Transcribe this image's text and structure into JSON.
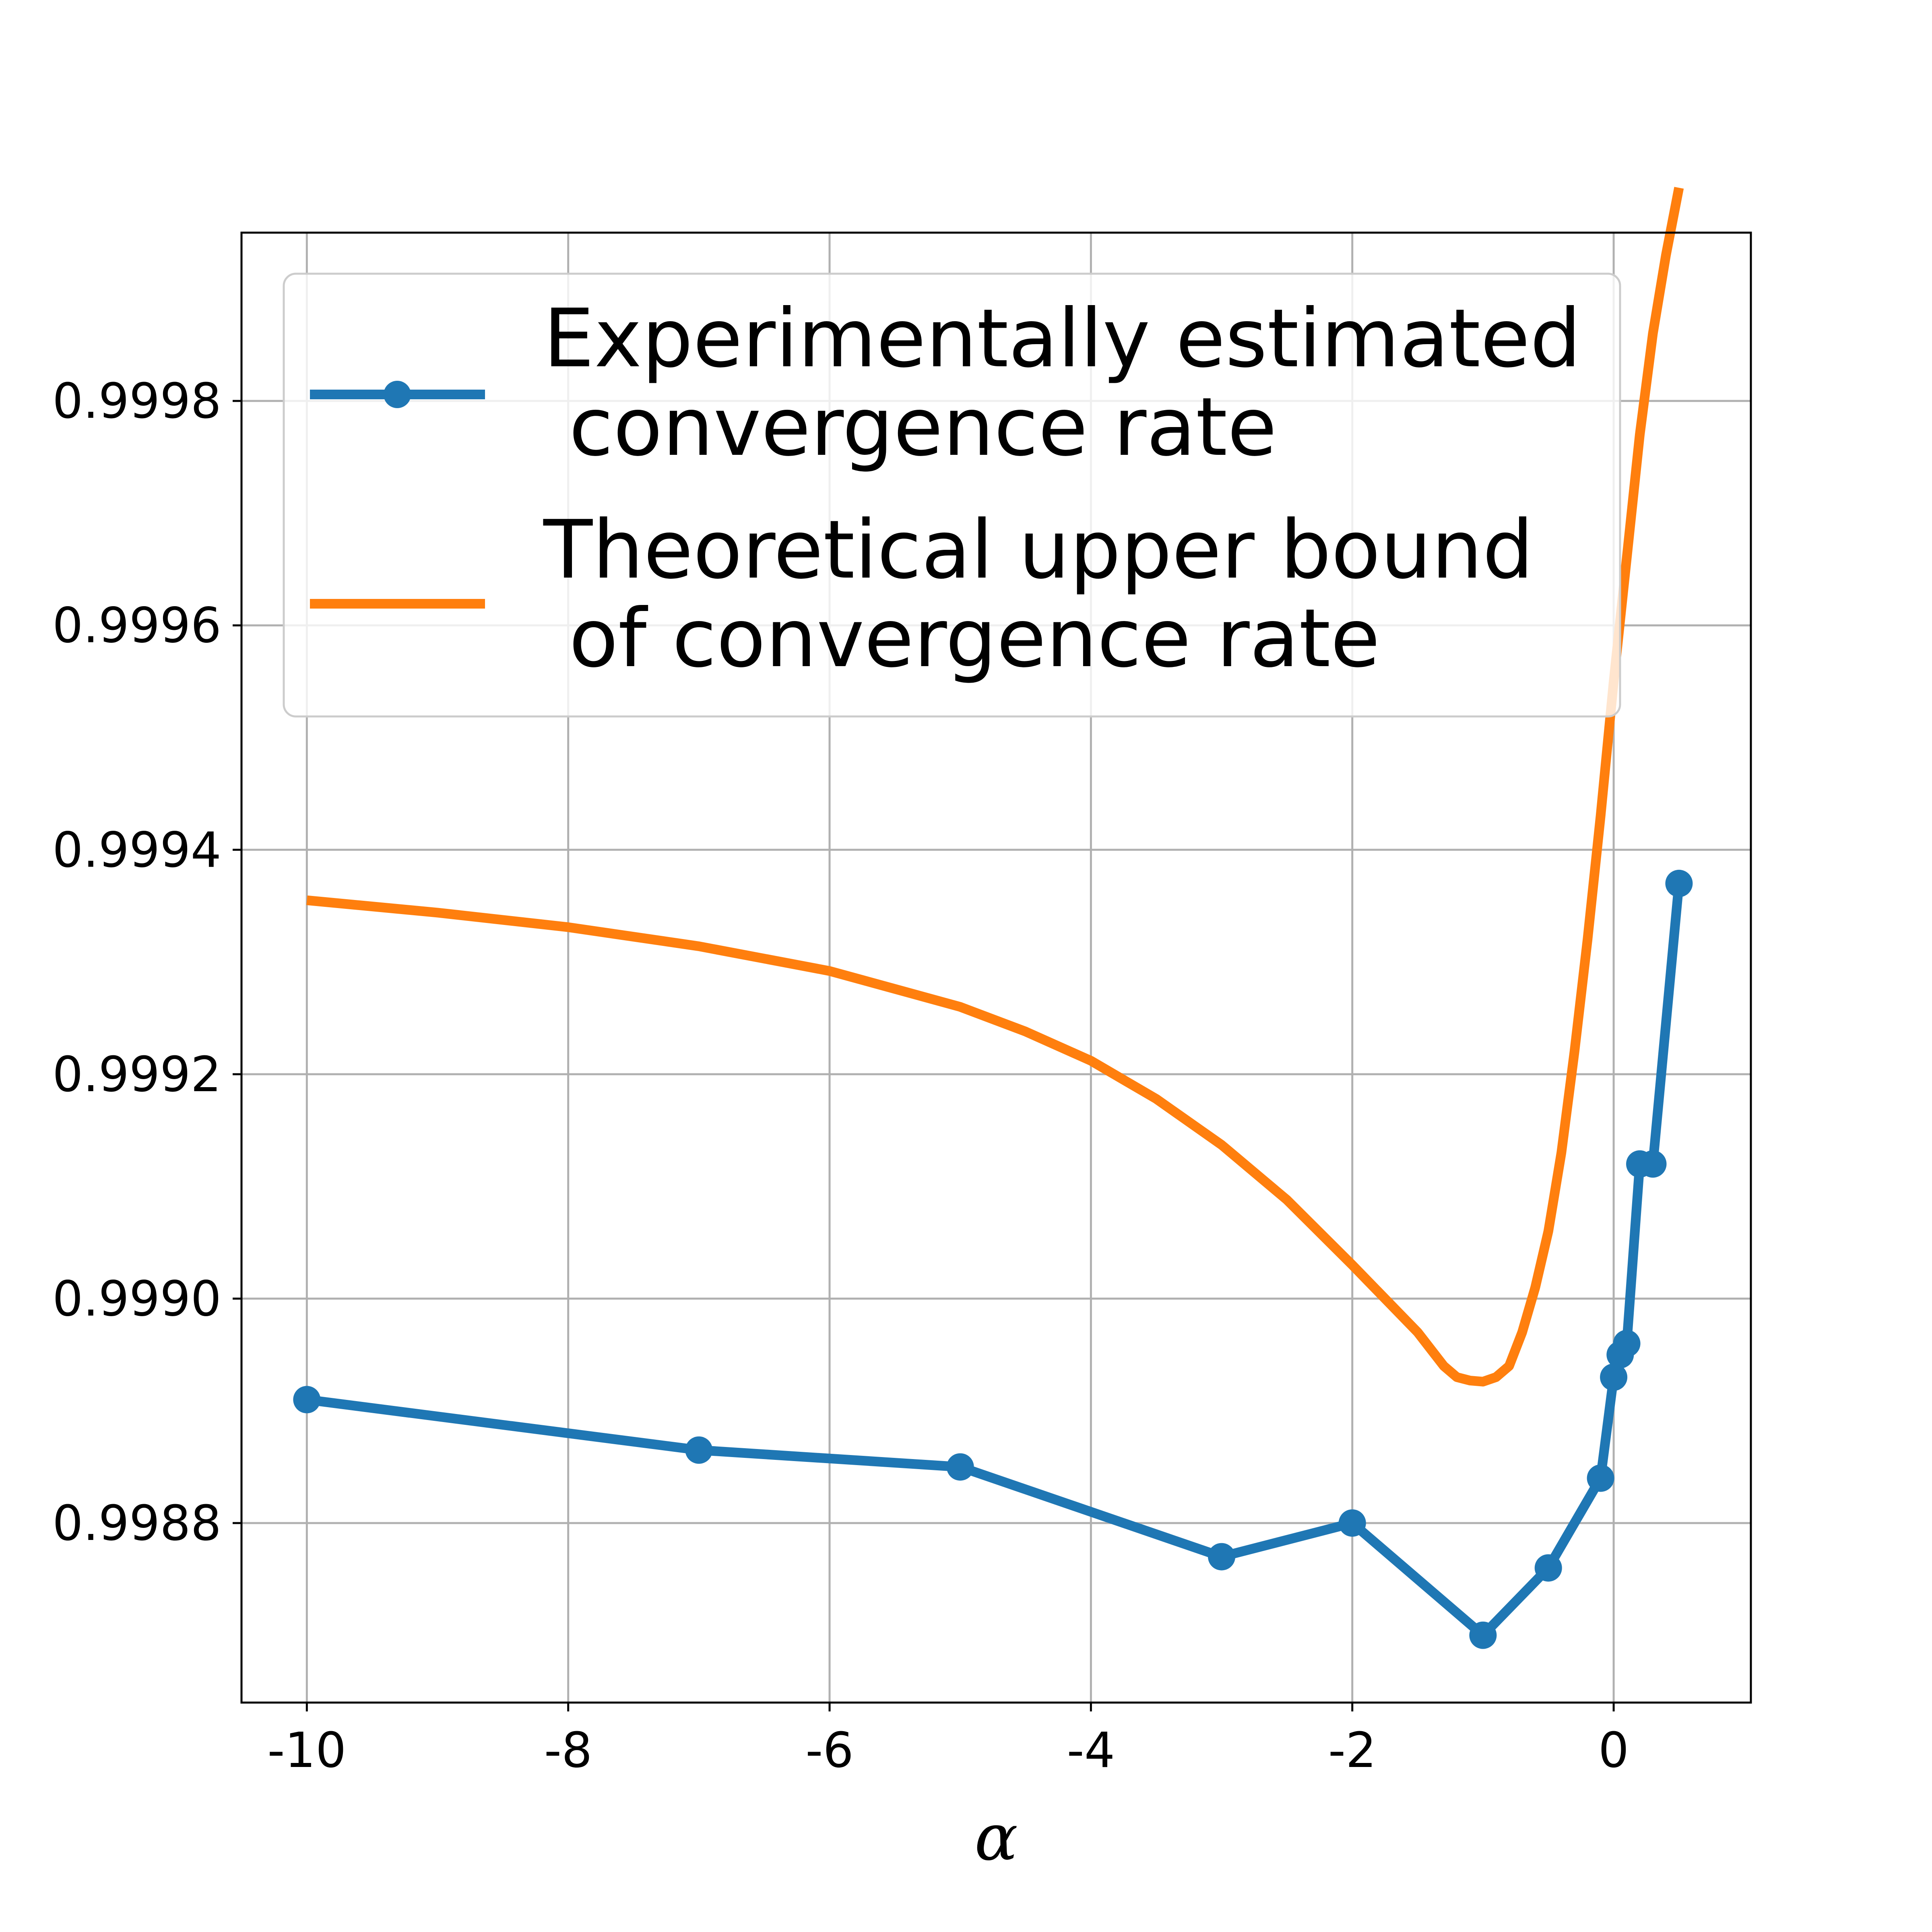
{
  "chart_data": {
    "type": "line",
    "title": "",
    "xlabel": "α",
    "ylabel": "",
    "xlim": [
      -10.5,
      1.05
    ],
    "ylim": [
      0.99864,
      0.99995
    ],
    "grid": true,
    "legend_position": "top",
    "xticks": [
      -10,
      -8,
      -6,
      -4,
      -2,
      0
    ],
    "xtick_labels": [
      "-10",
      "-8",
      "-6",
      "-4",
      "-2",
      "0"
    ],
    "yticks": [
      0.9988,
      0.999,
      0.9992,
      0.9994,
      0.9996,
      0.9998
    ],
    "ytick_labels": [
      "0.9988",
      "0.9990",
      "0.9992",
      "0.9994",
      "0.9996",
      "0.9998"
    ],
    "series": [
      {
        "name": "Experimentally estimated\n convergence rate",
        "legend_lines": [
          "Experimentally estimated",
          " convergence rate"
        ],
        "color": "#1f77b4",
        "marker": "circle",
        "x": [
          -10,
          -7,
          -5,
          -3,
          -2,
          -1,
          -0.5,
          -0.1,
          0,
          0.05,
          0.1,
          0.2,
          0.3,
          0.5
        ],
        "y": [
          0.99891,
          0.998865,
          0.99885,
          0.99877,
          0.9988,
          0.9987,
          0.99876,
          0.99884,
          0.99893,
          0.99895,
          0.99896,
          0.99912,
          0.99912,
          0.99937
        ]
      },
      {
        "name": "Theoretical upper bound\n of convergence rate",
        "legend_lines": [
          "Theoretical upper bound",
          " of convergence rate"
        ],
        "color": "#ff7f0e",
        "marker": "none",
        "x": [
          -10,
          -9,
          -8,
          -7,
          -6,
          -5,
          -4.5,
          -4,
          -3.5,
          -3,
          -2.5,
          -2,
          -1.75,
          -1.5,
          -1.3,
          -1.2,
          -1.1,
          -1.0,
          -0.9,
          -0.8,
          -0.7,
          -0.6,
          -0.5,
          -0.4,
          -0.3,
          -0.2,
          -0.1,
          0,
          0.1,
          0.2,
          0.3,
          0.4,
          0.5
        ],
        "y": [
          0.999355,
          0.999344,
          0.999331,
          0.999314,
          0.999292,
          0.99926,
          0.999238,
          0.999212,
          0.999178,
          0.999137,
          0.999088,
          0.99903,
          0.999,
          0.99897,
          0.99894,
          0.99893,
          0.998927,
          0.998926,
          0.99893,
          0.99894,
          0.99897,
          0.99901,
          0.99906,
          0.99913,
          0.99922,
          0.99932,
          0.99943,
          0.99955,
          0.99966,
          0.99977,
          0.99986,
          0.99993,
          0.99999
        ]
      }
    ]
  }
}
